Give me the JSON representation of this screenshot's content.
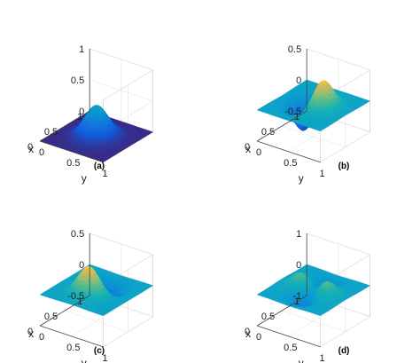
{
  "chart_data": [
    {
      "panel": "a",
      "type": "surface",
      "caption": "(a)",
      "xlabel": "x",
      "ylabel": "y",
      "x_ticks": [
        "0",
        "0.5",
        "1"
      ],
      "y_ticks": [
        "0",
        "0.5",
        "1"
      ],
      "z_ticks": [
        "0",
        "0.5",
        "1"
      ],
      "x_tick_values": [
        0,
        0.5,
        1
      ],
      "y_tick_values": [
        0,
        0.5,
        1
      ],
      "z_tick_values": [
        0,
        0.5,
        1
      ],
      "xlim": [
        0,
        1
      ],
      "ylim": [
        0,
        1
      ],
      "zlim": [
        0,
        1
      ],
      "grid": true,
      "colormap": "parula",
      "surface": {
        "kind": "gaussian",
        "amplitude": 0.5,
        "center": [
          0.5,
          0.5
        ],
        "sigma": 0.15,
        "tilt_angle_deg": 0
      }
    },
    {
      "panel": "b",
      "type": "surface",
      "caption": "(b)",
      "xlabel": "x",
      "ylabel": "y",
      "x_ticks": [
        "0",
        "0.5",
        "1"
      ],
      "y_ticks": [
        "0",
        "0.5",
        "1"
      ],
      "z_ticks": [
        "-0.5",
        "0",
        "0.5"
      ],
      "x_tick_values": [
        0,
        0.5,
        1
      ],
      "y_tick_values": [
        0,
        0.5,
        1
      ],
      "z_tick_values": [
        -0.5,
        0,
        0.5
      ],
      "xlim": [
        0,
        1
      ],
      "ylim": [
        0,
        1
      ],
      "zlim": [
        -0.5,
        0.5
      ],
      "grid": true,
      "colormap": "parula",
      "surface": {
        "kind": "dipole",
        "amplitude": 0.45,
        "center": [
          0.5,
          0.5
        ],
        "sigma": 0.15,
        "tilt_angle_deg": 90
      }
    },
    {
      "panel": "c",
      "type": "surface",
      "caption": "(c)",
      "xlabel": "x",
      "ylabel": "y",
      "x_ticks": [
        "0",
        "0.5",
        "1"
      ],
      "y_ticks": [
        "0",
        "0.5",
        "1"
      ],
      "z_ticks": [
        "-0.5",
        "0",
        "0.5"
      ],
      "x_tick_values": [
        0,
        0.5,
        1
      ],
      "y_tick_values": [
        0,
        0.5,
        1
      ],
      "z_tick_values": [
        -0.5,
        0,
        0.5
      ],
      "xlim": [
        0,
        1
      ],
      "ylim": [
        0,
        1
      ],
      "zlim": [
        -0.5,
        0.5
      ],
      "grid": true,
      "colormap": "parula",
      "surface": {
        "kind": "dipole",
        "amplitude": 0.45,
        "center": [
          0.5,
          0.5
        ],
        "sigma": 0.15,
        "tilt_angle_deg": 180
      }
    },
    {
      "panel": "d",
      "type": "surface",
      "caption": "(d)",
      "xlabel": "x",
      "ylabel": "y",
      "x_ticks": [
        "0",
        "0.5",
        "1"
      ],
      "y_ticks": [
        "0",
        "0.5",
        "1"
      ],
      "z_ticks": [
        "-1",
        "0",
        "1"
      ],
      "x_tick_values": [
        0,
        0.5,
        1
      ],
      "y_tick_values": [
        0,
        0.5,
        1
      ],
      "z_tick_values": [
        -1,
        0,
        1
      ],
      "xlim": [
        0,
        1
      ],
      "ylim": [
        0,
        1
      ],
      "zlim": [
        -1,
        1
      ],
      "grid": true,
      "colormap": "parula",
      "surface": {
        "kind": "quadrupole",
        "amplitude": 0.4,
        "center": [
          0.5,
          0.5
        ],
        "sigma": 0.15,
        "tilt_angle_deg": 45
      }
    }
  ]
}
